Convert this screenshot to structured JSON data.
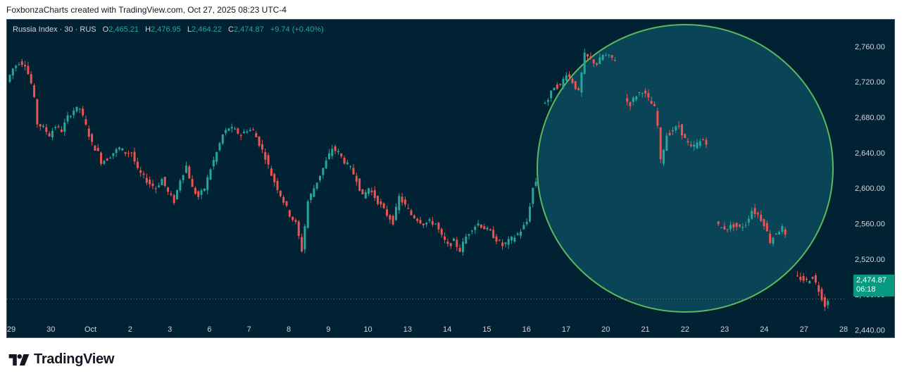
{
  "credit": "FoxbonzaCharts created with TradingView.com, Oct 27, 2025 08:23 UTC-4",
  "legend": {
    "symbol": "Russia Index · 30 · RUS",
    "open_label": "O",
    "open": "2,465.21",
    "high_label": "H",
    "high": "2,476.95",
    "low_label": "L",
    "low": "2,464.22",
    "close_label": "C",
    "close": "2,474.87",
    "change": "+9.74 (+0.40%)"
  },
  "price_tag": {
    "price": "2,474.87",
    "countdown": "06:18"
  },
  "logo": {
    "icon": "tradingview-logo-icon",
    "text": "TradingView"
  },
  "colors": {
    "up": "#26a69a",
    "down": "#ef5350",
    "background": "#012233",
    "highlight_circle": "#5cb85c"
  },
  "chart_data": {
    "type": "candlestick",
    "y_axis": {
      "min": 2430,
      "max": 2790,
      "ticks": [
        "2,760.00",
        "2,720.00",
        "2,680.00",
        "2,640.00",
        "2,600.00",
        "2,560.00",
        "2,520.00",
        "2,480.00",
        "2,440.00"
      ],
      "tick_values": [
        2760,
        2720,
        2680,
        2640,
        2600,
        2560,
        2520,
        2480,
        2440
      ]
    },
    "x_axis": {
      "labels": [
        "29",
        "30",
        "Oct",
        "2",
        "3",
        "6",
        "7",
        "8",
        "9",
        "10",
        "13",
        "14",
        "15",
        "16",
        "17",
        "20",
        "21",
        "22",
        "23",
        "24",
        "27",
        "28"
      ]
    },
    "last_price": 2474.87,
    "highlight": "circle around Oct 17 – Oct 24 period",
    "grid": false,
    "close_path": [
      [
        0,
        2720
      ],
      [
        2,
        2735
      ],
      [
        4,
        2742
      ],
      [
        6,
        2740
      ],
      [
        8,
        2718
      ],
      [
        9,
        2700
      ],
      [
        10,
        2673
      ],
      [
        12,
        2668
      ],
      [
        14,
        2660
      ],
      [
        16,
        2670
      ],
      [
        18,
        2665
      ],
      [
        20,
        2680
      ],
      [
        22,
        2688
      ],
      [
        24,
        2690
      ],
      [
        26,
        2670
      ],
      [
        28,
        2650
      ],
      [
        30,
        2640
      ],
      [
        31,
        2630
      ],
      [
        33,
        2633
      ],
      [
        35,
        2640
      ],
      [
        37,
        2645
      ],
      [
        39,
        2640
      ],
      [
        41,
        2640
      ],
      [
        43,
        2620
      ],
      [
        45,
        2612
      ],
      [
        47,
        2605
      ],
      [
        49,
        2600
      ],
      [
        51,
        2610
      ],
      [
        53,
        2595
      ],
      [
        55,
        2585
      ],
      [
        57,
        2610
      ],
      [
        59,
        2625
      ],
      [
        61,
        2600
      ],
      [
        63,
        2590
      ],
      [
        65,
        2600
      ],
      [
        67,
        2622
      ],
      [
        69,
        2640
      ],
      [
        71,
        2660
      ],
      [
        73,
        2668
      ],
      [
        75,
        2665
      ],
      [
        77,
        2660
      ],
      [
        79,
        2666
      ],
      [
        81,
        2665
      ],
      [
        83,
        2650
      ],
      [
        85,
        2635
      ],
      [
        87,
        2615
      ],
      [
        89,
        2600
      ],
      [
        91,
        2585
      ],
      [
        93,
        2570
      ],
      [
        95,
        2560
      ],
      [
        97,
        2530
      ],
      [
        99,
        2585
      ],
      [
        101,
        2600
      ],
      [
        103,
        2615
      ],
      [
        105,
        2630
      ],
      [
        107,
        2645
      ],
      [
        109,
        2640
      ],
      [
        111,
        2630
      ],
      [
        113,
        2622
      ],
      [
        115,
        2610
      ],
      [
        117,
        2590
      ],
      [
        119,
        2600
      ],
      [
        121,
        2590
      ],
      [
        123,
        2580
      ],
      [
        125,
        2570
      ],
      [
        127,
        2562
      ],
      [
        129,
        2590
      ],
      [
        131,
        2580
      ],
      [
        133,
        2570
      ],
      [
        135,
        2565
      ],
      [
        137,
        2560
      ],
      [
        139,
        2562
      ],
      [
        141,
        2560
      ],
      [
        143,
        2545
      ],
      [
        145,
        2535
      ],
      [
        147,
        2540
      ],
      [
        149,
        2530
      ],
      [
        151,
        2545
      ],
      [
        153,
        2555
      ],
      [
        155,
        2560
      ],
      [
        157,
        2555
      ],
      [
        159,
        2550
      ],
      [
        161,
        2542
      ],
      [
        163,
        2535
      ],
      [
        165,
        2540
      ],
      [
        167,
        2545
      ],
      [
        169,
        2552
      ],
      [
        171,
        2562
      ],
      [
        173,
        2600
      ],
      [
        174,
        2608
      ],
      [
        175,
        null
      ],
      [
        176,
        2695
      ],
      [
        178,
        2700
      ],
      [
        180,
        2715
      ],
      [
        182,
        2715
      ],
      [
        184,
        2730
      ],
      [
        186,
        2720
      ],
      [
        188,
        2708
      ],
      [
        190,
        2750
      ],
      [
        192,
        2745
      ],
      [
        194,
        2740
      ],
      [
        196,
        2750
      ],
      [
        198,
        2748
      ],
      [
        200,
        2745
      ],
      [
        201,
        null
      ],
      [
        203,
        2700
      ],
      [
        205,
        2695
      ],
      [
        207,
        2705
      ],
      [
        209,
        2710
      ],
      [
        211,
        2700
      ],
      [
        213,
        2690
      ],
      [
        214,
        2670
      ],
      [
        215,
        2630
      ],
      [
        217,
        2660
      ],
      [
        219,
        2665
      ],
      [
        221,
        2670
      ],
      [
        223,
        2655
      ],
      [
        225,
        2645
      ],
      [
        227,
        2650
      ],
      [
        229,
        2655
      ],
      [
        230,
        2652
      ],
      [
        231,
        null
      ],
      [
        233,
        2560
      ],
      [
        235,
        2555
      ],
      [
        237,
        2555
      ],
      [
        239,
        2558
      ],
      [
        241,
        2555
      ],
      [
        243,
        2560
      ],
      [
        245,
        2575
      ],
      [
        247,
        2570
      ],
      [
        249,
        2560
      ],
      [
        251,
        2540
      ],
      [
        253,
        2550
      ],
      [
        255,
        2555
      ],
      [
        256,
        2545
      ],
      [
        257,
        null
      ],
      [
        259,
        2500
      ],
      [
        261,
        2498
      ],
      [
        263,
        2495
      ],
      [
        265,
        2500
      ],
      [
        267,
        2485
      ],
      [
        269,
        2468
      ],
      [
        270,
        2475
      ]
    ]
  }
}
